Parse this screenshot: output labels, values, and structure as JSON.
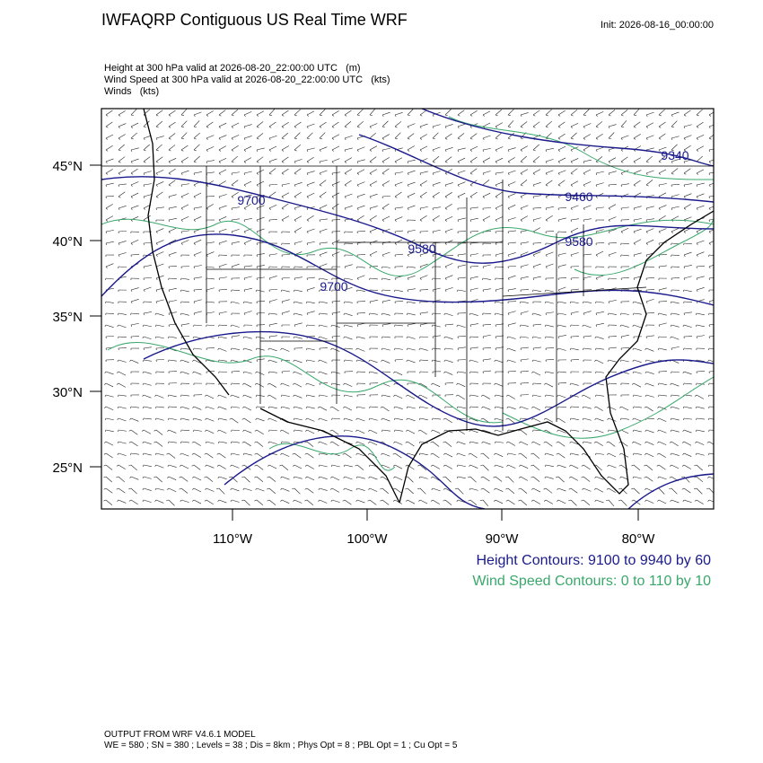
{
  "header": {
    "title": "IWFAQRP Contiguous US Real Time WRF",
    "init": "Init: 2026-08-16_00:00:00"
  },
  "fields": [
    "Height at 300 hPa valid at 2026-08-20_22:00:00 UTC   (m)",
    "Wind Speed at 300 hPa valid at 2026-08-20_22:00:00 UTC   (kts)",
    "Winds   (kts)"
  ],
  "map": {
    "lat_labels": [
      "45°N",
      "40°N",
      "35°N",
      "30°N",
      "25°N"
    ],
    "lon_labels": [
      "110°W",
      "100°W",
      "90°W",
      "80°W"
    ],
    "contour_labels": [
      "9700",
      "9580",
      "9700",
      "9460",
      "9580",
      "9340"
    ]
  },
  "legend": [
    "Height Contours: 9100 to 9940 by 60",
    "Wind Speed Contours: 0 to 110 by 10"
  ],
  "footer": [
    "OUTPUT FROM WRF V4.6.1 MODEL",
    "WE = 580 ; SN = 380 ; Levels = 38 ; Dis = 8km ; Phys Opt = 8 ; PBL Opt = 1 ; Cu Opt = 5"
  ]
}
